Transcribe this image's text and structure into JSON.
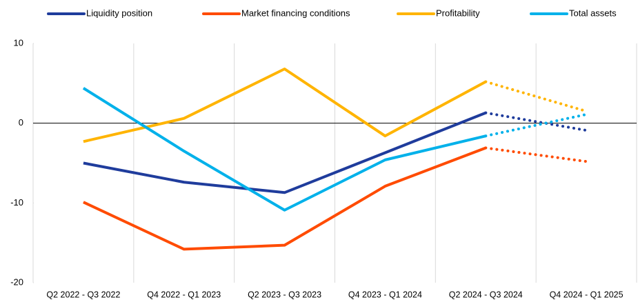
{
  "chart_data": {
    "type": "line",
    "categories": [
      "Q2 2022 - Q3 2022",
      "Q4 2022 - Q1 2023",
      "Q2 2023 - Q3 2023",
      "Q4 2023 - Q1 2024",
      "Q2 2024 - Q3 2024",
      "Q4 2024 - Q1 2025"
    ],
    "series": [
      {
        "name": "Liquidity position",
        "color": "#1f3c9c",
        "values": [
          -5.0,
          -7.4,
          -8.7,
          -3.7,
          1.3,
          -0.9
        ]
      },
      {
        "name": "Market financing conditions",
        "color": "#ff4b00",
        "values": [
          -9.9,
          -15.8,
          -15.3,
          -7.9,
          -3.1,
          -4.8
        ]
      },
      {
        "name": "Profitability",
        "color": "#ffb400",
        "values": [
          -2.3,
          0.6,
          6.8,
          -1.6,
          5.2,
          1.5
        ]
      },
      {
        "name": "Total assets",
        "color": "#00b1ea",
        "values": [
          4.4,
          -3.5,
          -10.9,
          -4.6,
          -1.6,
          1.1
        ]
      }
    ],
    "projection_start": 4,
    "ylim": [
      -20,
      10
    ],
    "yticks": [
      -20,
      -10,
      0,
      10
    ],
    "grid": "vertical",
    "legend": "top"
  }
}
